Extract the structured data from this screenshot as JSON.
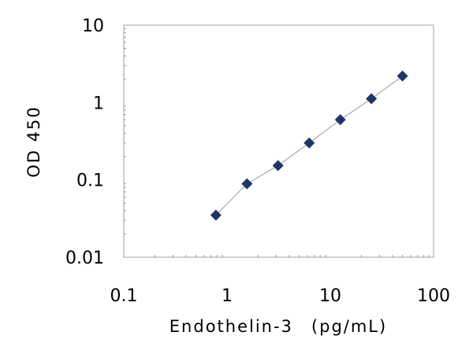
{
  "chart_data": {
    "type": "scatter",
    "title": "",
    "xlabel": "Endothelin-3　(pg/mL)",
    "ylabel": "OD 450",
    "x_scale": "log",
    "y_scale": "log",
    "xlim": [
      0.1,
      100
    ],
    "ylim": [
      0.01,
      10
    ],
    "x_tick_labels": [
      "0.1",
      "1",
      "10",
      "100"
    ],
    "y_tick_labels": [
      "0.01",
      "0.1",
      "1",
      "10"
    ],
    "grid": false,
    "legend": "none",
    "series": [
      {
        "marker": "diamond",
        "color": "#1f3566",
        "fit_line": true,
        "points": [
          {
            "x": 0.78,
            "y": 0.035
          },
          {
            "x": 1.56,
            "y": 0.089
          },
          {
            "x": 3.12,
            "y": 0.153
          },
          {
            "x": 6.25,
            "y": 0.3
          },
          {
            "x": 12.5,
            "y": 0.6
          },
          {
            "x": 25,
            "y": 1.12
          },
          {
            "x": 50,
            "y": 2.2
          }
        ]
      }
    ]
  }
}
